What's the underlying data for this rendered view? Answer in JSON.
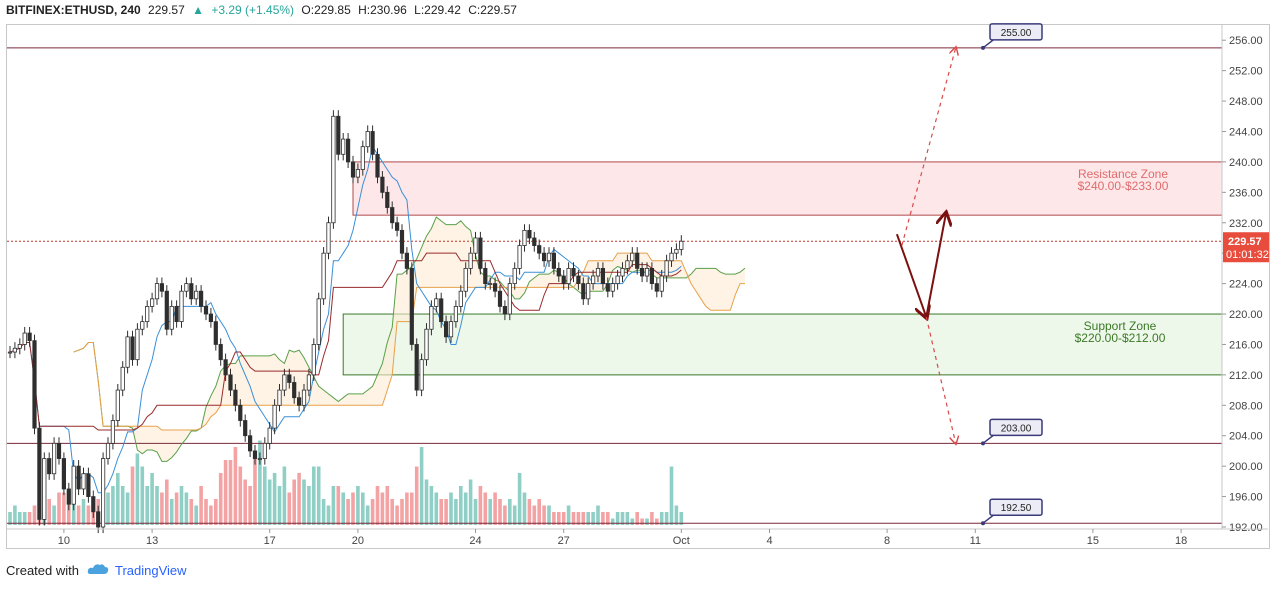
{
  "header": {
    "symbol": "BITFINEX:ETHUSD, 240",
    "last": "229.57",
    "change": "+3.29 (+1.45%)",
    "open": "O:229.85",
    "high": "H:230.96",
    "low": "L:229.42",
    "close": "C:229.57"
  },
  "footer": {
    "created_with": "Created with",
    "brand": "TradingView"
  },
  "colors": {
    "bull": "#26a69a",
    "bear": "#ef5350",
    "candle_body_dark": "#2e2e2e",
    "resistance_fill": "#fde3e5",
    "support_fill": "#eaf6e6",
    "cloud_bull": "#e8f5e1",
    "cloud_bear": "#fdebd3",
    "arrow": "#7b1010"
  },
  "chart_data": {
    "type": "candlestick",
    "y_axis": {
      "range": [
        192,
        258
      ],
      "ticks": [
        "256.00",
        "252.00",
        "248.00",
        "244.00",
        "240.00",
        "236.00",
        "232.00",
        "228.00",
        "224.00",
        "220.00",
        "216.00",
        "212.00",
        "208.00",
        "204.00",
        "200.00",
        "196.00",
        "192.00"
      ]
    },
    "x_axis": {
      "ticks": [
        {
          "label": "10",
          "i": 11
        },
        {
          "label": "13",
          "i": 29
        },
        {
          "label": "17",
          "i": 53
        },
        {
          "label": "20",
          "i": 71
        },
        {
          "label": "24",
          "i": 95
        },
        {
          "label": "27",
          "i": 113
        },
        {
          "label": "Oct",
          "i": 137
        },
        {
          "label": "4",
          "i": 155
        },
        {
          "label": "8",
          "i": 179
        },
        {
          "label": "11",
          "i": 197
        },
        {
          "label": "15",
          "i": 221
        },
        {
          "label": "18",
          "i": 239
        }
      ]
    },
    "price_label": "229.57",
    "countdown": "01:01:32",
    "zones": [
      {
        "name": "Resistance Zone",
        "range_label": "$240.00-$233.00",
        "from": 233,
        "to": 240,
        "i_start": 70
      },
      {
        "name": "Support Zone",
        "range_label": "$220.00-$212.00",
        "from": 212,
        "to": 220,
        "i_start": 68
      }
    ],
    "levels": [
      {
        "label": "255.00",
        "value": 255
      },
      {
        "label": "203.00",
        "value": 203
      },
      {
        "label": "192.50",
        "value": 192.5
      }
    ],
    "closes": [
      215,
      215.5,
      216,
      217.5,
      216.5,
      205,
      193,
      201,
      199,
      203,
      201,
      197,
      195,
      200,
      197,
      199,
      196,
      194,
      192,
      201,
      203,
      206,
      210,
      213,
      217,
      214,
      218,
      219,
      221,
      222,
      224,
      223,
      218,
      221,
      219,
      223,
      224,
      222,
      223,
      221,
      220,
      219,
      216,
      214,
      212,
      210,
      208,
      206,
      204,
      202,
      201,
      201,
      203,
      205,
      208,
      210,
      212,
      211,
      209,
      208,
      210,
      212,
      216,
      222,
      228,
      232,
      246,
      241,
      243,
      240,
      238,
      239,
      242,
      244,
      241,
      238,
      236,
      234,
      232,
      231,
      228,
      226,
      216,
      210,
      214,
      218,
      221,
      222,
      219,
      217,
      219,
      221,
      223,
      226,
      228,
      230,
      226,
      224,
      224,
      223,
      221,
      220,
      224,
      226,
      229,
      231,
      230,
      229,
      228,
      227,
      228,
      226,
      225,
      224,
      226,
      225,
      224,
      222,
      224,
      225,
      226,
      224,
      223,
      224,
      225,
      226,
      227,
      228,
      226,
      225,
      226,
      224,
      223,
      225,
      227,
      228,
      228.5,
      229.57
    ],
    "volumes": [
      2,
      3,
      2,
      2,
      2,
      3,
      5,
      4,
      4,
      3,
      5,
      5,
      4,
      6,
      3,
      4,
      3,
      2,
      4,
      3,
      5,
      6,
      8,
      6,
      5,
      9,
      11,
      9,
      6,
      8,
      6,
      5,
      7,
      4,
      5,
      6,
      5,
      4,
      3,
      6,
      4,
      3,
      4,
      8,
      10,
      10,
      12,
      9,
      7,
      6,
      11,
      13,
      9,
      7,
      8,
      6,
      9,
      5,
      7,
      8,
      7,
      6,
      9,
      9,
      4,
      3,
      6,
      6,
      5,
      4,
      5,
      6,
      5,
      3,
      4,
      6,
      5,
      6,
      4,
      3,
      4,
      5,
      5,
      9,
      12,
      7,
      6,
      5,
      4,
      4,
      5,
      4,
      6,
      5,
      7,
      4,
      6,
      5,
      4,
      5,
      4,
      3,
      4,
      3,
      8,
      5,
      4,
      3,
      4,
      3,
      3,
      2,
      2,
      2,
      3,
      2,
      2,
      2,
      2,
      2,
      3,
      2,
      2,
      1,
      2,
      2,
      2,
      1,
      2,
      1,
      1,
      2,
      1,
      2,
      2,
      9,
      3,
      2
    ],
    "projections": [
      {
        "from": [
          181,
          230.5
        ],
        "to": [
          187,
          219.6
        ],
        "style": "solid"
      },
      {
        "from": [
          187,
          219.6
        ],
        "to": [
          191,
          233.2
        ],
        "style": "solid"
      },
      {
        "from": [
          182,
          229
        ],
        "to": [
          193,
          255
        ],
        "style": "dashed"
      },
      {
        "from": [
          187,
          219.6
        ],
        "to": [
          193,
          203
        ],
        "style": "dashed"
      }
    ]
  }
}
